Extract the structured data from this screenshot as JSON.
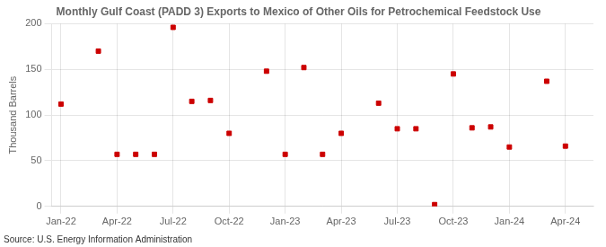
{
  "chart_data": {
    "type": "scatter",
    "title": "Monthly Gulf Coast (PADD 3) Exports to Mexico of Other Oils for Petrochemical Feedstock Use",
    "ylabel": "Thousand Barrels",
    "annotations": [
      "Source: U.S. Energy Information Administration"
    ],
    "x": [
      0,
      2,
      3,
      4,
      5,
      6,
      7,
      8,
      9,
      11,
      12,
      13,
      14,
      15,
      17,
      18,
      19,
      20,
      21,
      22,
      23,
      24,
      26,
      27
    ],
    "values": [
      112,
      170,
      57,
      57,
      57,
      196,
      115,
      116,
      80,
      148,
      57,
      152,
      57,
      80,
      113,
      85,
      85,
      2,
      145,
      86,
      87,
      65,
      137,
      66
    ],
    "color": "#cc0000",
    "marker": "square",
    "xlim": [
      -0.5,
      28.5
    ],
    "xticks": [
      {
        "value": 0,
        "label": "Jan-22"
      },
      {
        "value": 3,
        "label": "Apr-22"
      },
      {
        "value": 6,
        "label": "Jul-22"
      },
      {
        "value": 9,
        "label": "Oct-22"
      },
      {
        "value": 12,
        "label": "Jan-23"
      },
      {
        "value": 15,
        "label": "Apr-23"
      },
      {
        "value": 18,
        "label": "Jul-23"
      },
      {
        "value": 21,
        "label": "Oct-23"
      },
      {
        "value": 24,
        "label": "Jan-24"
      },
      {
        "value": 27,
        "label": "Apr-24"
      }
    ],
    "ylim": [
      0,
      200
    ],
    "yticks": [
      0,
      50,
      100,
      150,
      200
    ],
    "grid": true
  }
}
